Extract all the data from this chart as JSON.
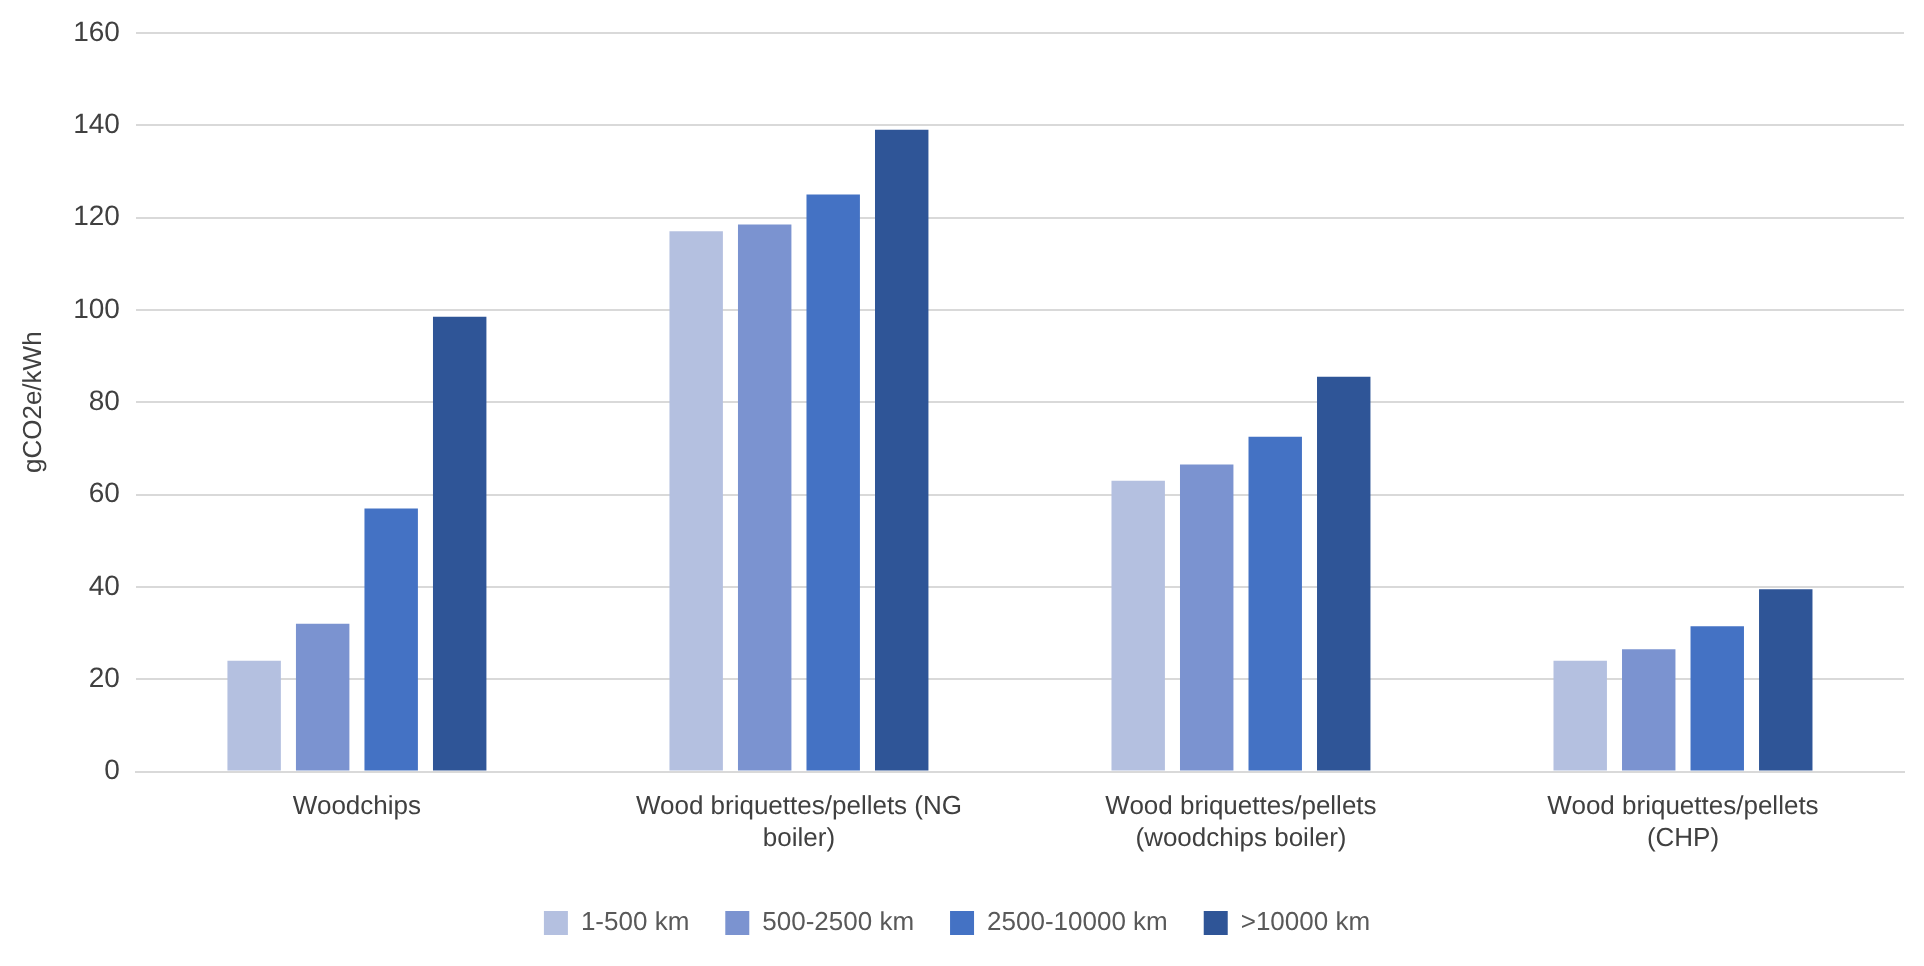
{
  "chart_data": {
    "type": "bar",
    "ylabel": "gCO2e/kWh",
    "categories": [
      "Woodchips",
      "Wood briquettes/pellets (NG boiler)",
      "Wood briquettes/pellets (woodchips boiler)",
      "Wood briquettes/pellets (CHP)"
    ],
    "series": [
      {
        "name": "1-500 km",
        "color": "#b4c0e0",
        "values": [
          24,
          117,
          63,
          24
        ]
      },
      {
        "name": "500-2500 km",
        "color": "#7b93d0",
        "values": [
          32,
          118.5,
          66.5,
          26.5
        ]
      },
      {
        "name": "2500-10000 km",
        "color": "#4472c4",
        "values": [
          57,
          125,
          72.5,
          31.5
        ]
      },
      {
        "name": ">10000 km",
        "color": "#2f5597",
        "values": [
          98.5,
          139,
          85.5,
          39.5
        ]
      }
    ],
    "ylim": [
      0,
      160
    ],
    "yticks": [
      0,
      20,
      40,
      60,
      80,
      100,
      120,
      140,
      160
    ],
    "grid": "y",
    "legend": "bottom"
  }
}
